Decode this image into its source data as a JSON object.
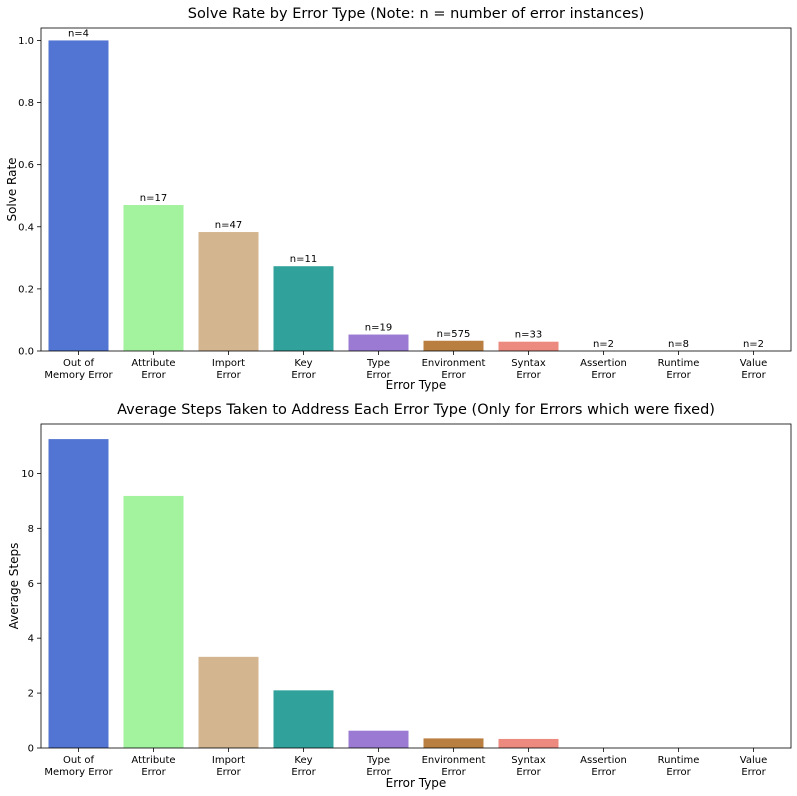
{
  "chart_data": [
    {
      "type": "bar",
      "title": "Solve Rate by Error Type (Note: n = number of error instances)",
      "xlabel": "Error Type",
      "ylabel": "Solve Rate",
      "ylim": [
        0,
        1.04
      ],
      "yticks": [
        "0.0",
        "0.2",
        "0.4",
        "0.6",
        "0.8",
        "1.0"
      ],
      "categories": [
        [
          "Out of",
          "Memory Error"
        ],
        [
          "Attribute",
          "Error"
        ],
        [
          "Import",
          "Error"
        ],
        [
          "Key",
          "Error"
        ],
        [
          "Type",
          "Error"
        ],
        [
          "Environment",
          "Error"
        ],
        [
          "Syntax",
          "Error"
        ],
        [
          "Assertion",
          "Error"
        ],
        [
          "Runtime",
          "Error"
        ],
        [
          "Value",
          "Error"
        ]
      ],
      "values": [
        1.0,
        0.47,
        0.383,
        0.273,
        0.053,
        0.033,
        0.03,
        0.0,
        0.0,
        0.0
      ],
      "annotations": [
        "n=4",
        "n=17",
        "n=47",
        "n=11",
        "n=19",
        "n=575",
        "n=33",
        "n=2",
        "n=8",
        "n=2"
      ],
      "colors": [
        "#5274d2",
        "#a2f29e",
        "#d3b690",
        "#30a29b",
        "#9a7ad2",
        "#b87f41",
        "#ed8a7f",
        "#cccccc",
        "#cccccc",
        "#cccccc"
      ]
    },
    {
      "type": "bar",
      "title": "Average Steps Taken to Address Each Error Type (Only for Errors which were fixed)",
      "xlabel": "Error Type",
      "ylabel": "Average Steps",
      "ylim": [
        0,
        11.8
      ],
      "yticks": [
        "0",
        "2",
        "4",
        "6",
        "8",
        "10"
      ],
      "categories": [
        [
          "Out of",
          "Memory Error"
        ],
        [
          "Attribute",
          "Error"
        ],
        [
          "Import",
          "Error"
        ],
        [
          "Key",
          "Error"
        ],
        [
          "Type",
          "Error"
        ],
        [
          "Environment",
          "Error"
        ],
        [
          "Syntax",
          "Error"
        ],
        [
          "Assertion",
          "Error"
        ],
        [
          "Runtime",
          "Error"
        ],
        [
          "Value",
          "Error"
        ]
      ],
      "values": [
        11.25,
        9.18,
        3.32,
        2.1,
        0.63,
        0.35,
        0.33,
        0,
        0,
        0
      ],
      "colors": [
        "#5274d2",
        "#a2f29e",
        "#d3b690",
        "#30a29b",
        "#9a7ad2",
        "#b87f41",
        "#ed8a7f",
        "#cccccc",
        "#cccccc",
        "#cccccc"
      ]
    }
  ]
}
